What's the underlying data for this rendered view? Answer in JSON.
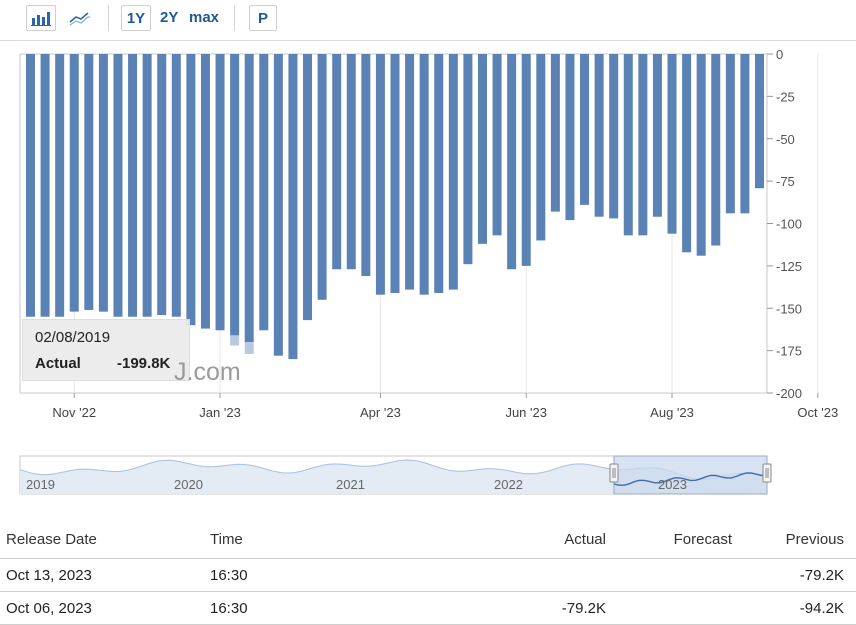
{
  "toolbar": {
    "bar_icon": "bar-chart-icon",
    "line_icon": "line-chart-icon",
    "range_1y": "1Y",
    "range_2y": "2Y",
    "range_max": "max",
    "p_label": "P"
  },
  "chart_data": {
    "type": "bar",
    "y_axis_side": "right",
    "ylim": [
      -200,
      0
    ],
    "y_ticks": [
      0,
      -25,
      -50,
      -75,
      -100,
      -125,
      -150,
      -175,
      -200
    ],
    "x_tick_labels": [
      "Nov '22",
      "Jan '23",
      "Apr '23",
      "Jun '23",
      "Aug '23",
      "Oct '23"
    ],
    "x_tick_bar_index": [
      3,
      13,
      24,
      34,
      44,
      54
    ],
    "series": [
      {
        "color": "#5b82b4",
        "values": [
          -155,
          -155,
          -155,
          -152,
          -151,
          -152,
          -155,
          -155,
          -155,
          -154,
          -155,
          -160,
          -162,
          -163,
          -166,
          -170,
          -163,
          -178,
          -180,
          -157,
          -145,
          -127,
          -127,
          -131,
          -142,
          -141,
          -139,
          -142,
          -141,
          -139,
          -124,
          -112,
          -107,
          -127,
          -125,
          -110,
          -93,
          -98,
          -89,
          -96,
          -97,
          -107,
          -107,
          -96,
          -106,
          -117,
          -119,
          -113,
          -94,
          -94,
          -79.2
        ]
      }
    ],
    "ghost_bars": [
      {
        "index": 14,
        "value": -172
      },
      {
        "index": 15,
        "value": -177
      }
    ],
    "navigator": {
      "year_labels": [
        "2019",
        "2020",
        "2021",
        "2022",
        "2023"
      ]
    },
    "tooltip": {
      "date": "02/08/2019",
      "label": "Actual",
      "value": "-199.8K"
    },
    "watermark": "J.com"
  },
  "table": {
    "headers": {
      "release_date": "Release Date",
      "time": "Time",
      "actual": "Actual",
      "forecast": "Forecast",
      "previous": "Previous"
    },
    "rows": [
      {
        "release_date": "Oct 13, 2023",
        "time": "16:30",
        "actual": "",
        "forecast": "",
        "previous": "-79.2K"
      },
      {
        "release_date": "Oct 06, 2023",
        "time": "16:30",
        "actual": "-79.2K",
        "forecast": "",
        "previous": "-94.2K"
      }
    ]
  }
}
